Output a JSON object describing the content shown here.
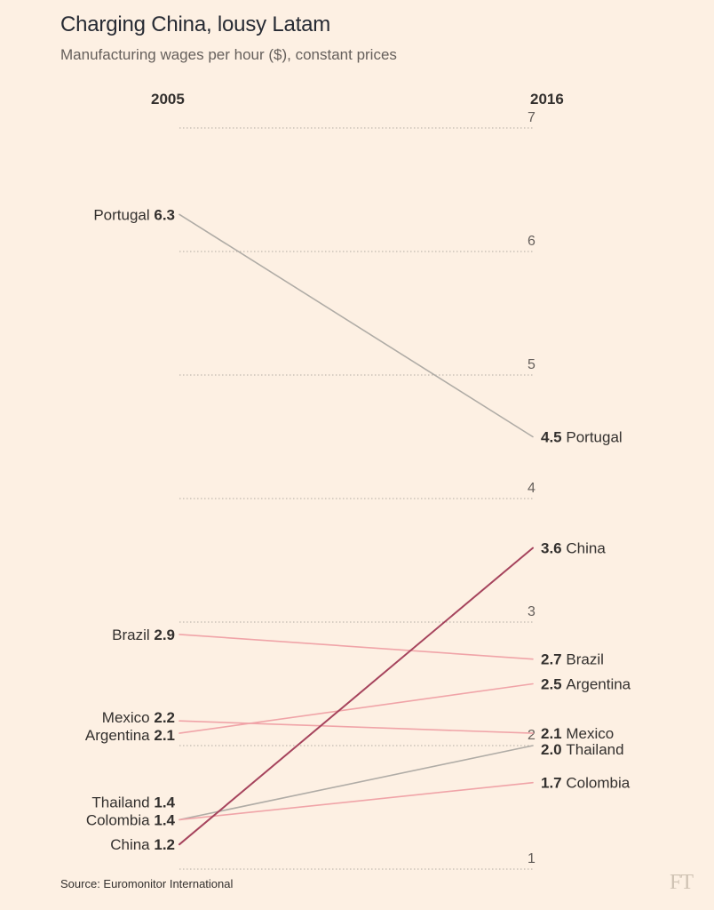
{
  "header": {
    "title": "Charging China, lousy Latam",
    "subtitle": "Manufacturing wages per hour ($), constant prices"
  },
  "footer": {
    "source": "Source: Euromonitor International",
    "logo": "FT"
  },
  "colors": {
    "background": "#fdf0e3",
    "china": "#a6445d",
    "latam": "#f0a4a8",
    "grey": "#b0aca6",
    "grid": "#b3aca3"
  },
  "chart_data": {
    "type": "slope",
    "title": "Charging China, lousy Latam",
    "subtitle": "Manufacturing wages per hour ($), constant prices",
    "x": [
      "2005",
      "2016"
    ],
    "ylim": [
      1,
      7
    ],
    "yticks": [
      1,
      2,
      3,
      4,
      5,
      6,
      7
    ],
    "grid": true,
    "series": [
      {
        "name": "Portugal",
        "values": [
          6.3,
          4.5
        ],
        "labels": [
          "6.3",
          "4.5"
        ],
        "style": "grey"
      },
      {
        "name": "China",
        "values": [
          1.2,
          3.6
        ],
        "labels": [
          "1.2",
          "3.6"
        ],
        "style": "china"
      },
      {
        "name": "Brazil",
        "values": [
          2.9,
          2.7
        ],
        "labels": [
          "2.9",
          "2.7"
        ],
        "style": "latam"
      },
      {
        "name": "Argentina",
        "values": [
          2.1,
          2.5
        ],
        "labels": [
          "2.1",
          "2.5"
        ],
        "style": "latam"
      },
      {
        "name": "Mexico",
        "values": [
          2.2,
          2.1
        ],
        "labels": [
          "2.2",
          "2.1"
        ],
        "style": "latam"
      },
      {
        "name": "Thailand",
        "values": [
          1.4,
          2.0
        ],
        "labels": [
          "1.4",
          "2.0"
        ],
        "style": "grey"
      },
      {
        "name": "Colombia",
        "values": [
          1.4,
          1.7
        ],
        "labels": [
          "1.4",
          "1.7"
        ],
        "style": "latam"
      }
    ]
  }
}
